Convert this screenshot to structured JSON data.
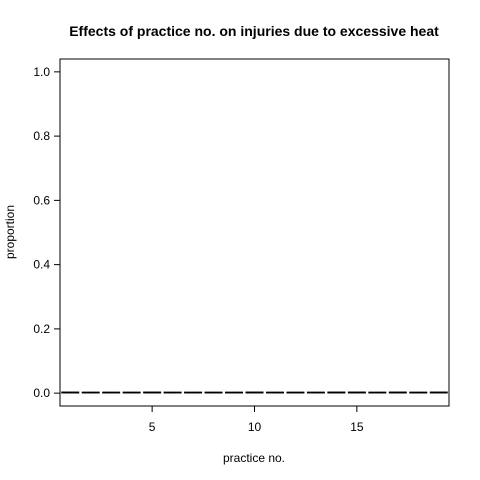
{
  "chart_data": {
    "type": "bar",
    "title": "Effects of practice no. on injuries due to excessive heat",
    "xlabel": "practice no.",
    "ylabel": "proportion",
    "xlim": [
      0.5,
      19.5
    ],
    "ylim": [
      -0.04,
      1.04
    ],
    "xticks": [
      "5",
      "10",
      "15"
    ],
    "yticks": [
      "0.0",
      "0.2",
      "0.4",
      "0.6",
      "0.8",
      "1.0"
    ],
    "grid": false,
    "x": [
      1,
      2,
      3,
      4,
      5,
      6,
      7,
      8,
      9,
      10,
      11,
      12,
      13,
      14,
      15,
      16,
      17,
      18,
      19
    ],
    "values": [
      0.004,
      0.002,
      0.002,
      0.002,
      0.004,
      0.002,
      0.0,
      0.0,
      0.002,
      0.004,
      0.002,
      0.002,
      0.002,
      0.004,
      0.004,
      0.002,
      0.004,
      0.002,
      0.004
    ]
  }
}
